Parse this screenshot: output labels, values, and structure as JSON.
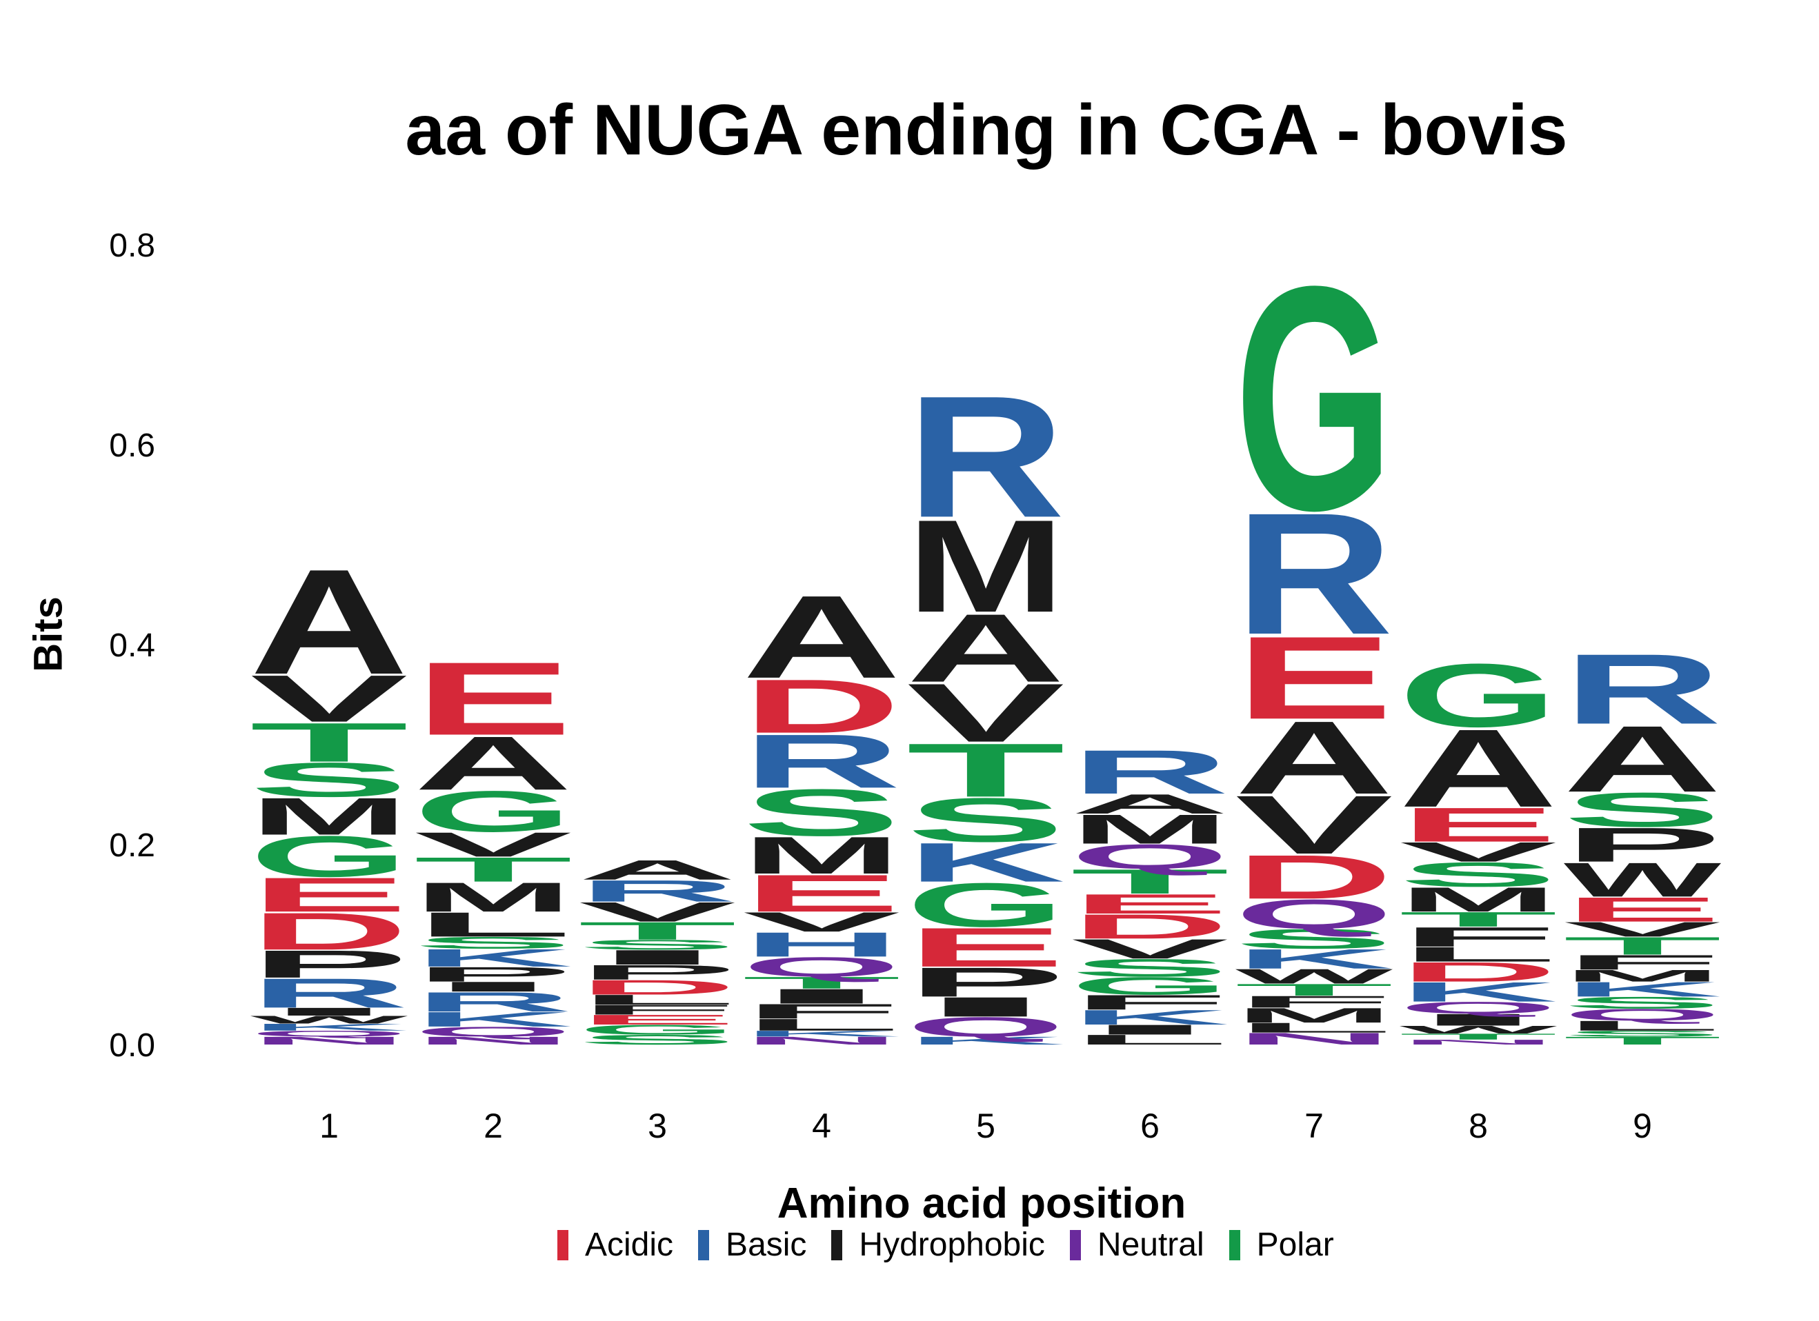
{
  "chart_data": {
    "type": "sequence-logo",
    "title": "aa of NUGA ending in CGA - bovis",
    "xlabel": "Amino acid position",
    "ylabel": "Bits",
    "ylim": [
      0,
      0.8
    ],
    "y_ticks": [
      "0.0",
      "0.2",
      "0.4",
      "0.6",
      "0.8"
    ],
    "positions": [
      "1",
      "2",
      "3",
      "4",
      "5",
      "6",
      "7",
      "8",
      "9"
    ],
    "legend": [
      {
        "label": "Acidic",
        "color": "#D62839"
      },
      {
        "label": "Basic",
        "color": "#2A62A6"
      },
      {
        "label": "Hydrophobic",
        "color": "#1A1A1A"
      },
      {
        "label": "Neutral",
        "color": "#6A2A9C"
      },
      {
        "label": "Polar",
        "color": "#139A48"
      }
    ],
    "letters": [
      [
        [
          "N",
          0.008
        ],
        [
          "Q",
          0.006
        ],
        [
          "K",
          0.007
        ],
        [
          "W",
          0.008
        ],
        [
          "I",
          0.008
        ],
        [
          "R",
          0.03
        ],
        [
          "P",
          0.028
        ],
        [
          "D",
          0.038
        ],
        [
          "E",
          0.035
        ],
        [
          "G",
          0.042
        ],
        [
          "M",
          0.038
        ],
        [
          "S",
          0.035
        ],
        [
          "T",
          0.04
        ],
        [
          "V",
          0.048
        ],
        [
          "A",
          0.108
        ]
      ],
      [
        [
          "N",
          0.008
        ],
        [
          "Q",
          0.01
        ],
        [
          "K",
          0.015
        ],
        [
          "R",
          0.02
        ],
        [
          "I",
          0.01
        ],
        [
          "P",
          0.015
        ],
        [
          "K",
          0.018
        ],
        [
          "S",
          0.012
        ],
        [
          "L",
          0.025
        ],
        [
          "M",
          0.03
        ],
        [
          "T",
          0.025
        ],
        [
          "V",
          0.025
        ],
        [
          "G",
          0.042
        ],
        [
          "A",
          0.055
        ],
        [
          "E",
          0.075
        ]
      ],
      [
        [
          "S",
          0.01
        ],
        [
          "G",
          0.01
        ],
        [
          "E",
          0.01
        ],
        [
          "F",
          0.01
        ],
        [
          "L",
          0.01
        ],
        [
          "D",
          0.015
        ],
        [
          "P",
          0.015
        ],
        [
          "I",
          0.015
        ],
        [
          "S",
          0.01
        ],
        [
          "T",
          0.018
        ],
        [
          "V",
          0.02
        ],
        [
          "R",
          0.022
        ],
        [
          "A",
          0.02
        ]
      ],
      [
        [
          "N",
          0.008
        ],
        [
          "K",
          0.006
        ],
        [
          "L",
          0.012
        ],
        [
          "F",
          0.015
        ],
        [
          "I",
          0.015
        ],
        [
          "T",
          0.012
        ],
        [
          "Q",
          0.02
        ],
        [
          "H",
          0.025
        ],
        [
          "V",
          0.02
        ],
        [
          "E",
          0.038
        ],
        [
          "M",
          0.038
        ],
        [
          "S",
          0.048
        ],
        [
          "R",
          0.055
        ],
        [
          "D",
          0.055
        ],
        [
          "A",
          0.085
        ]
      ],
      [
        [
          "K",
          0.008
        ],
        [
          "Q",
          0.02
        ],
        [
          "I",
          0.02
        ],
        [
          "P",
          0.03
        ],
        [
          "E",
          0.04
        ],
        [
          "G",
          0.045
        ],
        [
          "K",
          0.04
        ],
        [
          "S",
          0.045
        ],
        [
          "T",
          0.055
        ],
        [
          "V",
          0.06
        ],
        [
          "A",
          0.07
        ],
        [
          "M",
          0.095
        ],
        [
          "R",
          0.125
        ]
      ],
      [
        [
          "L",
          0.01
        ],
        [
          "I",
          0.01
        ],
        [
          "K",
          0.015
        ],
        [
          "F",
          0.015
        ],
        [
          "G",
          0.018
        ],
        [
          "S",
          0.018
        ],
        [
          "V",
          0.02
        ],
        [
          "D",
          0.025
        ],
        [
          "E",
          0.02
        ],
        [
          "T",
          0.025
        ],
        [
          "Q",
          0.025
        ],
        [
          "M",
          0.03
        ],
        [
          "A",
          0.02
        ],
        [
          "R",
          0.045
        ]
      ],
      [
        [
          "N",
          0.012
        ],
        [
          "L",
          0.01
        ],
        [
          "M",
          0.015
        ],
        [
          "F",
          0.012
        ],
        [
          "T",
          0.012
        ],
        [
          "W",
          0.015
        ],
        [
          "K",
          0.02
        ],
        [
          "S",
          0.02
        ],
        [
          "Q",
          0.03
        ],
        [
          "D",
          0.045
        ],
        [
          "V",
          0.06
        ],
        [
          "A",
          0.075
        ],
        [
          "E",
          0.085
        ],
        [
          "R",
          0.125
        ],
        [
          "G",
          0.23
        ]
      ],
      [
        [
          "N",
          0.005
        ],
        [
          "T",
          0.006
        ],
        [
          "W",
          0.008
        ],
        [
          "I",
          0.012
        ],
        [
          "Q",
          0.012
        ],
        [
          "K",
          0.02
        ],
        [
          "D",
          0.02
        ],
        [
          "L",
          0.015
        ],
        [
          "F",
          0.02
        ],
        [
          "T",
          0.015
        ],
        [
          "M",
          0.025
        ],
        [
          "S",
          0.025
        ],
        [
          "V",
          0.02
        ],
        [
          "E",
          0.035
        ],
        [
          "A",
          0.08
        ],
        [
          "G",
          0.065
        ]
      ],
      [
        [
          "T",
          0.008
        ],
        [
          "S",
          0.006
        ],
        [
          "L",
          0.01
        ],
        [
          "Q",
          0.012
        ],
        [
          "S",
          0.012
        ],
        [
          "K",
          0.015
        ],
        [
          "M",
          0.012
        ],
        [
          "F",
          0.015
        ],
        [
          "T",
          0.018
        ],
        [
          "V",
          0.015
        ],
        [
          "E",
          0.025
        ],
        [
          "W",
          0.035
        ],
        [
          "P",
          0.035
        ],
        [
          "S",
          0.035
        ],
        [
          "A",
          0.068
        ],
        [
          "R",
          0.072
        ]
      ]
    ]
  }
}
